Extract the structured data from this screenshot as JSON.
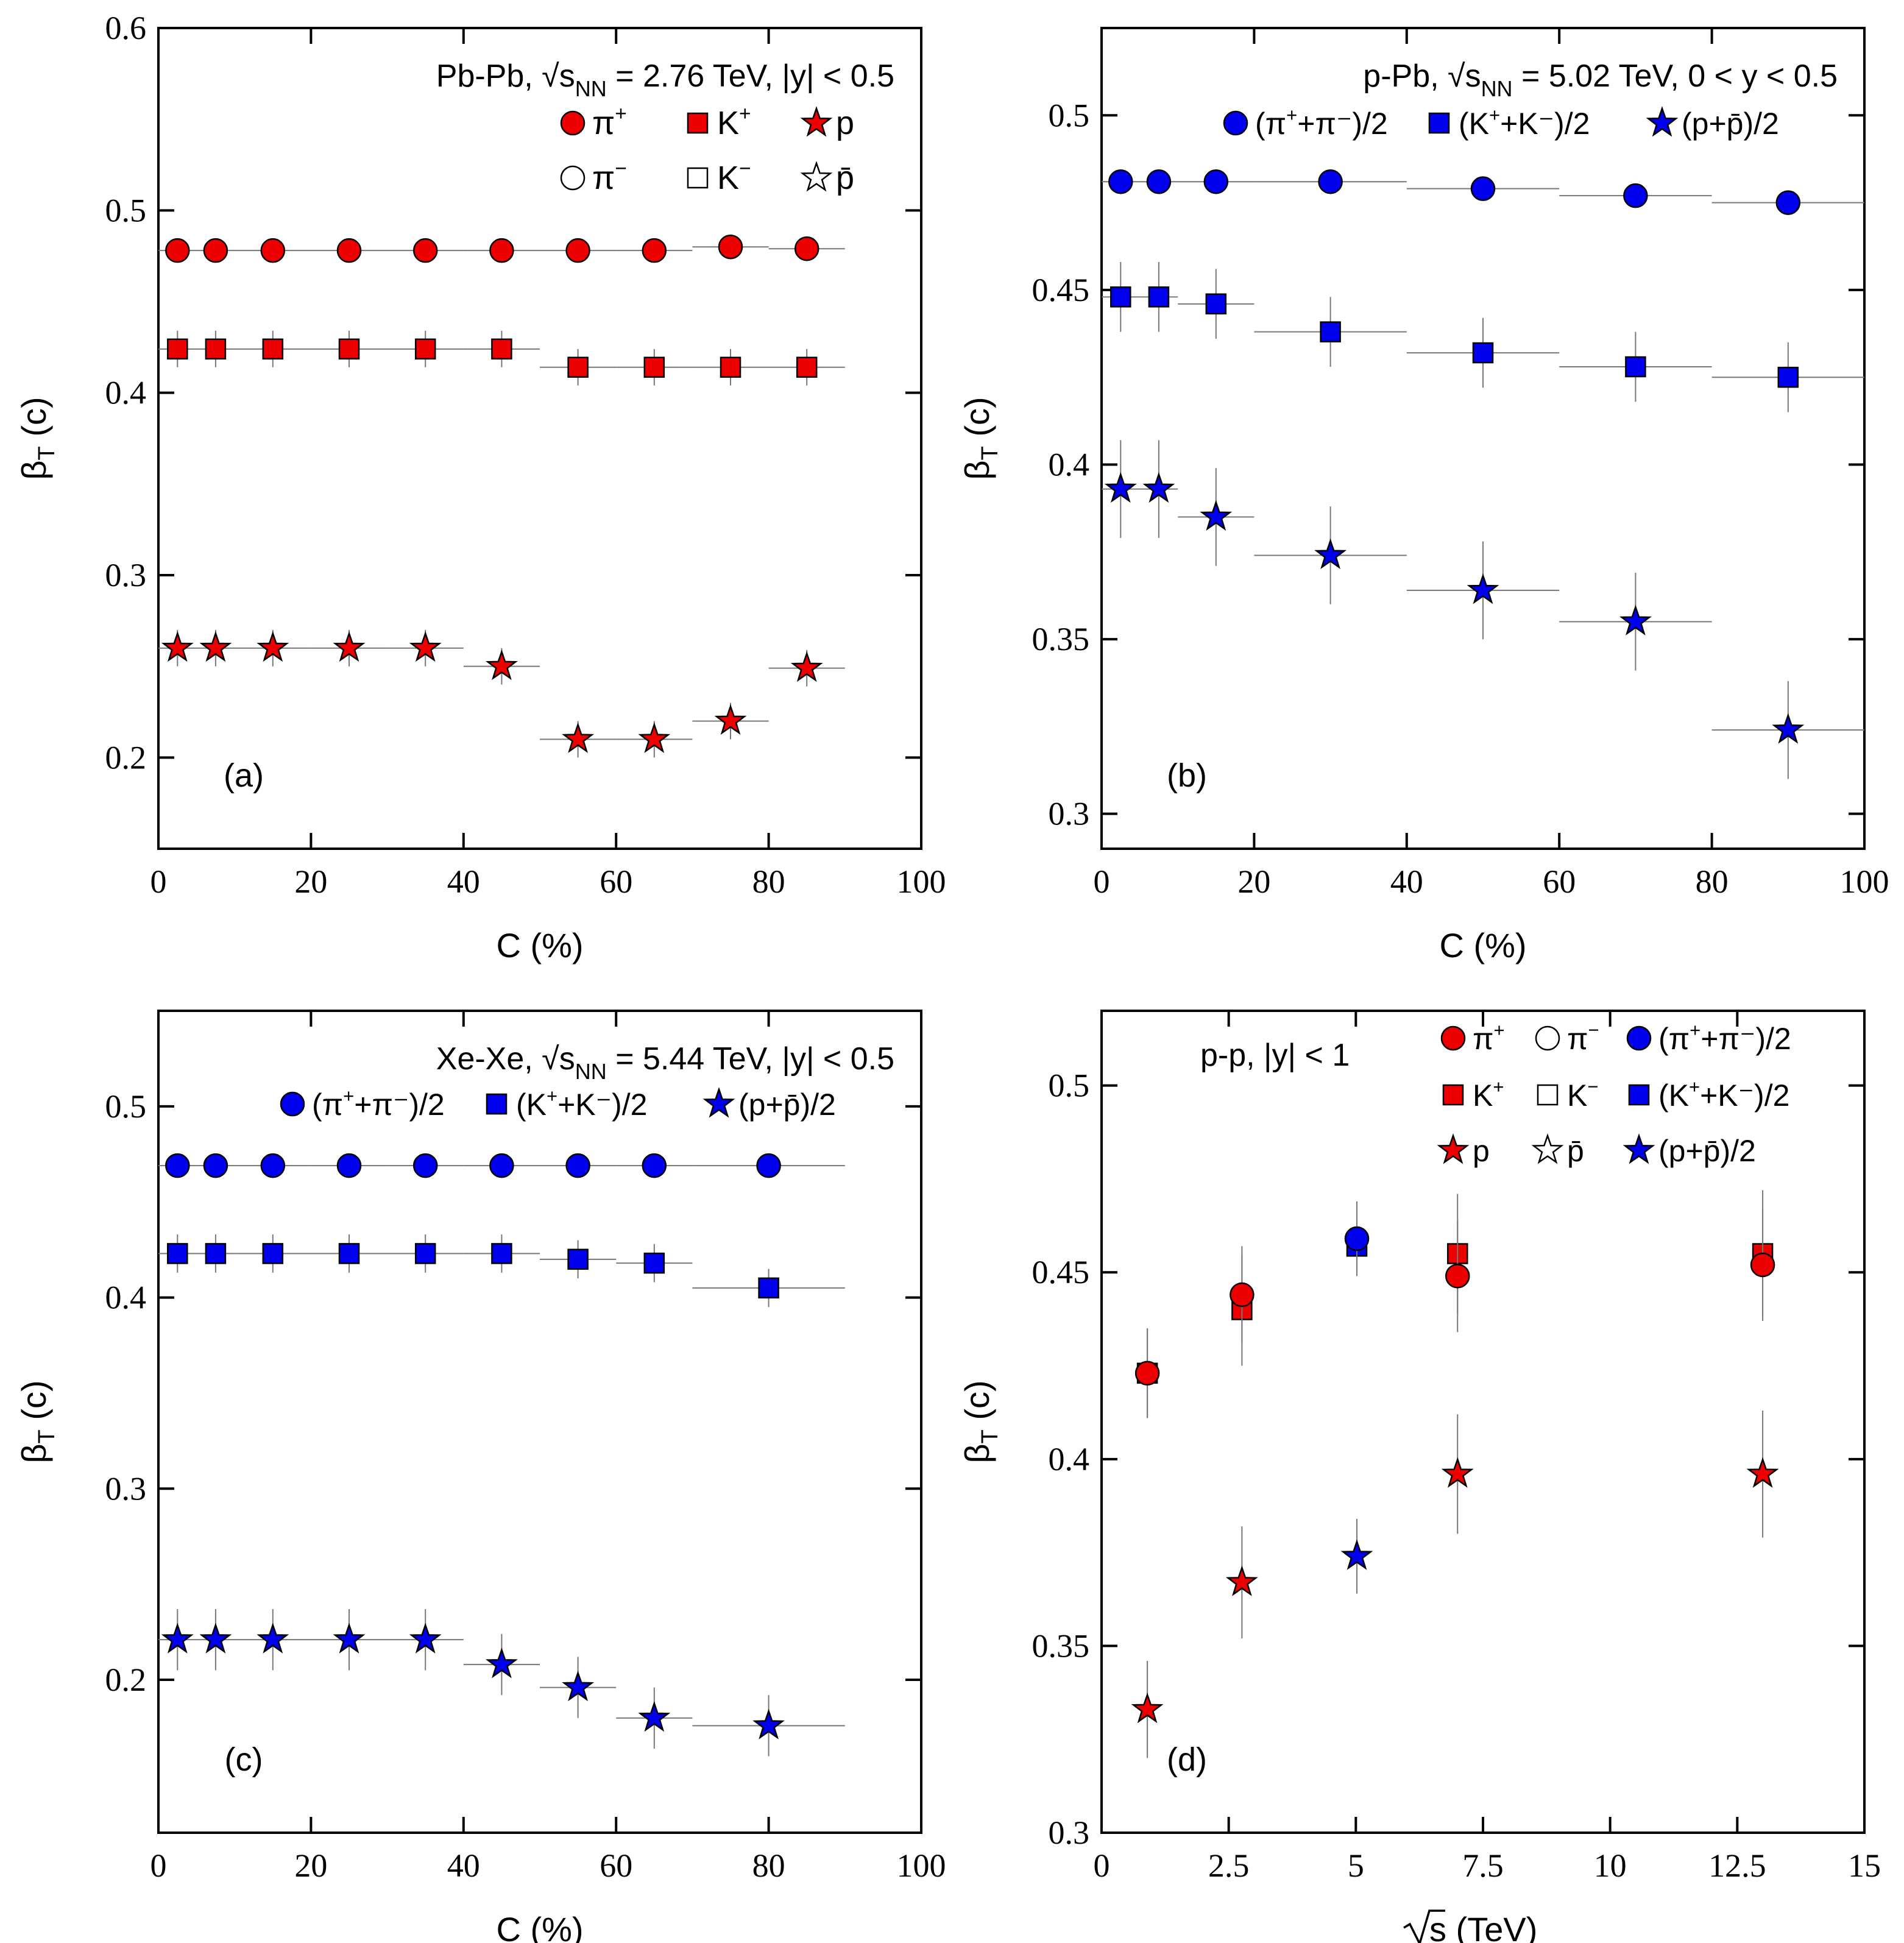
{
  "colors": {
    "red": "#ee0000",
    "blue": "#0000ee",
    "error": "#777777"
  },
  "chart_data": [
    {
      "type": "scatter",
      "panel_label": "(a)",
      "system": "Pb-Pb,",
      "sqrt_label": "s",
      "sqrt_sub": "NN",
      "annotation_rest": "= 2.76 TeV, |y| < 0.5",
      "xlabel": "C (%)",
      "ylabel_main": "β",
      "ylabel_sub": "T",
      "ylabel_unit": " (c)",
      "xlim": [
        0,
        100
      ],
      "ylim": [
        0.15,
        0.6
      ],
      "xticks": [
        0,
        20,
        40,
        60,
        80,
        100
      ],
      "xtick_labels": [
        "0",
        "20",
        "40",
        "60",
        "80",
        "100"
      ],
      "yticks": [
        0.2,
        0.3,
        0.4,
        0.5,
        0.6
      ],
      "ytick_labels": [
        "0.2",
        "0.3",
        "0.4",
        "0.5",
        "0.6"
      ],
      "legend_position": "top-right",
      "legend": [
        {
          "marker": "circle",
          "filled": true,
          "color": "red",
          "text": "π",
          "sup": "+",
          "tail": ""
        },
        {
          "marker": "square",
          "filled": true,
          "color": "red",
          "text": "K",
          "sup": "+",
          "tail": ""
        },
        {
          "marker": "star",
          "filled": true,
          "color": "red",
          "text": "p",
          "sup": "",
          "tail": ""
        },
        {
          "marker": "circle",
          "filled": false,
          "color": "black",
          "text": "π",
          "sup": "−",
          "tail": ""
        },
        {
          "marker": "square",
          "filled": false,
          "color": "black",
          "text": "K",
          "sup": "−",
          "tail": ""
        },
        {
          "marker": "star",
          "filled": false,
          "color": "black",
          "text": "p̄",
          "sup": "",
          "tail": ""
        }
      ],
      "series": [
        {
          "name": "π+",
          "marker": "circle",
          "color": "red",
          "x": [
            2.5,
            7.5,
            15,
            25,
            35,
            45,
            55,
            65,
            75,
            85
          ],
          "xerr": [
            2.5,
            2.5,
            5,
            5,
            5,
            5,
            5,
            5,
            5,
            5
          ],
          "y": [
            0.478,
            0.478,
            0.478,
            0.478,
            0.478,
            0.478,
            0.478,
            0.478,
            0.48,
            0.479
          ],
          "yerr": [
            0.004,
            0.004,
            0.004,
            0.004,
            0.004,
            0.004,
            0.004,
            0.004,
            0.004,
            0.004
          ]
        },
        {
          "name": "K+",
          "marker": "square",
          "color": "red",
          "x": [
            2.5,
            7.5,
            15,
            25,
            35,
            45,
            55,
            65,
            75,
            85
          ],
          "xerr": [
            2.5,
            2.5,
            5,
            5,
            5,
            5,
            5,
            5,
            5,
            5
          ],
          "y": [
            0.424,
            0.424,
            0.424,
            0.424,
            0.424,
            0.424,
            0.414,
            0.414,
            0.414,
            0.414
          ],
          "yerr": [
            0.01,
            0.01,
            0.01,
            0.01,
            0.01,
            0.01,
            0.01,
            0.01,
            0.01,
            0.01
          ]
        },
        {
          "name": "p",
          "marker": "star",
          "color": "red",
          "x": [
            2.5,
            7.5,
            15,
            25,
            35,
            45,
            55,
            65,
            75,
            85
          ],
          "xerr": [
            2.5,
            2.5,
            5,
            5,
            5,
            5,
            5,
            5,
            5,
            5
          ],
          "y": [
            0.26,
            0.26,
            0.26,
            0.26,
            0.26,
            0.25,
            0.21,
            0.21,
            0.22,
            0.249
          ],
          "yerr": [
            0.01,
            0.01,
            0.01,
            0.01,
            0.01,
            0.01,
            0.01,
            0.01,
            0.01,
            0.01
          ]
        }
      ]
    },
    {
      "type": "scatter",
      "panel_label": "(b)",
      "system": "p-Pb,",
      "sqrt_label": "s",
      "sqrt_sub": "NN",
      "annotation_rest": "= 5.02 TeV, 0 < y < 0.5",
      "xlabel": "C (%)",
      "ylabel_main": "β",
      "ylabel_sub": "T",
      "ylabel_unit": " (c)",
      "xlim": [
        0,
        100
      ],
      "ylim": [
        0.29,
        0.525
      ],
      "xticks": [
        0,
        20,
        40,
        60,
        80,
        100
      ],
      "xtick_labels": [
        "0",
        "20",
        "40",
        "60",
        "80",
        "100"
      ],
      "yticks": [
        0.3,
        0.35,
        0.4,
        0.45,
        0.5
      ],
      "ytick_labels": [
        "0.3",
        "0.35",
        "0.4",
        "0.45",
        "0.5"
      ],
      "legend_position": "top-right",
      "legend": [
        {
          "marker": "circle",
          "filled": true,
          "color": "blue",
          "text": "(π",
          "sup": "+",
          "tail": "+π⁻)/2"
        },
        {
          "marker": "square",
          "filled": true,
          "color": "blue",
          "text": "(K",
          "sup": "+",
          "tail": "+K⁻)/2"
        },
        {
          "marker": "star",
          "filled": true,
          "color": "blue",
          "text": "(p+p̄)/2",
          "sup": "",
          "tail": ""
        }
      ],
      "series": [
        {
          "name": "(π+ + π−)/2",
          "marker": "circle",
          "color": "blue",
          "x": [
            2.5,
            7.5,
            15,
            30,
            50,
            70,
            90
          ],
          "xerr": [
            2.5,
            2.5,
            5,
            10,
            10,
            10,
            10
          ],
          "y": [
            0.481,
            0.481,
            0.481,
            0.481,
            0.479,
            0.477,
            0.475
          ],
          "yerr": [
            0.002,
            0.002,
            0.002,
            0.002,
            0.002,
            0.002,
            0.002
          ]
        },
        {
          "name": "(K+ + K−)/2",
          "marker": "square",
          "color": "blue",
          "x": [
            2.5,
            7.5,
            15,
            30,
            50,
            70,
            90
          ],
          "xerr": [
            2.5,
            2.5,
            5,
            10,
            10,
            10,
            10
          ],
          "y": [
            0.448,
            0.448,
            0.446,
            0.438,
            0.432,
            0.428,
            0.425
          ],
          "yerr": [
            0.01,
            0.01,
            0.01,
            0.01,
            0.01,
            0.01,
            0.01
          ]
        },
        {
          "name": "(p + p̄)/2",
          "marker": "star",
          "color": "blue",
          "x": [
            2.5,
            7.5,
            15,
            30,
            50,
            70,
            90
          ],
          "xerr": [
            2.5,
            2.5,
            5,
            10,
            10,
            10,
            10
          ],
          "y": [
            0.393,
            0.393,
            0.385,
            0.374,
            0.364,
            0.355,
            0.324
          ],
          "yerr": [
            0.014,
            0.014,
            0.014,
            0.014,
            0.014,
            0.014,
            0.014
          ]
        }
      ]
    },
    {
      "type": "scatter",
      "panel_label": "(c)",
      "system": "Xe-Xe,",
      "sqrt_label": "s",
      "sqrt_sub": "NN",
      "annotation_rest": "= 5.44 TeV, |y| < 0.5",
      "xlabel": "C (%)",
      "ylabel_main": "β",
      "ylabel_sub": "T",
      "ylabel_unit": " (c)",
      "xlim": [
        0,
        100
      ],
      "ylim": [
        0.12,
        0.55
      ],
      "xticks": [
        0,
        20,
        40,
        60,
        80,
        100
      ],
      "xtick_labels": [
        "0",
        "20",
        "40",
        "60",
        "80",
        "100"
      ],
      "yticks": [
        0.2,
        0.3,
        0.4,
        0.5
      ],
      "ytick_labels": [
        "0.2",
        "0.3",
        "0.4",
        "0.5"
      ],
      "legend_position": "top-right",
      "legend": [
        {
          "marker": "circle",
          "filled": true,
          "color": "blue",
          "text": "(π",
          "sup": "+",
          "tail": "+π⁻)/2"
        },
        {
          "marker": "square",
          "filled": true,
          "color": "blue",
          "text": "(K",
          "sup": "+",
          "tail": "+K⁻)/2"
        },
        {
          "marker": "star",
          "filled": true,
          "color": "blue",
          "text": "(p+p̄)/2",
          "sup": "",
          "tail": ""
        }
      ],
      "series": [
        {
          "name": "(π+ + π−)/2",
          "marker": "circle",
          "color": "blue",
          "x": [
            2.5,
            7.5,
            15,
            25,
            35,
            45,
            55,
            65,
            80
          ],
          "xerr": [
            2.5,
            2.5,
            5,
            5,
            5,
            5,
            5,
            5,
            10
          ],
          "y": [
            0.469,
            0.469,
            0.469,
            0.469,
            0.469,
            0.469,
            0.469,
            0.469,
            0.469
          ],
          "yerr": [
            0.003,
            0.003,
            0.003,
            0.003,
            0.003,
            0.003,
            0.003,
            0.003,
            0.003
          ]
        },
        {
          "name": "(K+ + K−)/2",
          "marker": "square",
          "color": "blue",
          "x": [
            2.5,
            7.5,
            15,
            25,
            35,
            45,
            55,
            65,
            80
          ],
          "xerr": [
            2.5,
            2.5,
            5,
            5,
            5,
            5,
            5,
            5,
            10
          ],
          "y": [
            0.423,
            0.423,
            0.423,
            0.423,
            0.423,
            0.423,
            0.42,
            0.418,
            0.405
          ],
          "yerr": [
            0.01,
            0.01,
            0.01,
            0.01,
            0.01,
            0.01,
            0.01,
            0.01,
            0.01
          ]
        },
        {
          "name": "(p + p̄)/2",
          "marker": "star",
          "color": "blue",
          "x": [
            2.5,
            7.5,
            15,
            25,
            35,
            45,
            55,
            65,
            80
          ],
          "xerr": [
            2.5,
            2.5,
            5,
            5,
            5,
            5,
            5,
            5,
            10
          ],
          "y": [
            0.221,
            0.221,
            0.221,
            0.221,
            0.221,
            0.208,
            0.196,
            0.18,
            0.176
          ],
          "yerr": [
            0.016,
            0.016,
            0.016,
            0.016,
            0.016,
            0.016,
            0.016,
            0.016,
            0.016
          ]
        }
      ]
    },
    {
      "type": "scatter",
      "panel_label": "(d)",
      "system": "p-p, |y| < 1",
      "sqrt_label": "",
      "sqrt_sub": "",
      "annotation_rest": "",
      "xlabel": "s (TeV)",
      "xlabel_sqrt": true,
      "ylabel_main": "β",
      "ylabel_sub": "T",
      "ylabel_unit": " (c)",
      "xlim": [
        0,
        15
      ],
      "ylim": [
        0.3,
        0.52
      ],
      "xticks": [
        0,
        2.5,
        5,
        7.5,
        10,
        12.5,
        15
      ],
      "xtick_labels": [
        "0",
        "2.5",
        "5",
        "7.5",
        "10",
        "12.5",
        "15"
      ],
      "yticks": [
        0.3,
        0.35,
        0.4,
        0.45,
        0.5
      ],
      "ytick_labels": [
        "0.3",
        "0.35",
        "0.4",
        "0.45",
        "0.5"
      ],
      "legend_position": "top-right",
      "legend": [
        {
          "marker": "circle",
          "filled": true,
          "color": "red",
          "text": "π",
          "sup": "+",
          "tail": ""
        },
        {
          "marker": "circle",
          "filled": false,
          "color": "black",
          "text": "π",
          "sup": "−",
          "tail": ""
        },
        {
          "marker": "circle",
          "filled": true,
          "color": "blue",
          "text": "(π",
          "sup": "+",
          "tail": "+π⁻)/2"
        },
        {
          "marker": "square",
          "filled": true,
          "color": "red",
          "text": "K",
          "sup": "+",
          "tail": ""
        },
        {
          "marker": "square",
          "filled": false,
          "color": "black",
          "text": "K",
          "sup": "−",
          "tail": ""
        },
        {
          "marker": "square",
          "filled": true,
          "color": "blue",
          "text": "(K",
          "sup": "+",
          "tail": "+K⁻)/2"
        },
        {
          "marker": "star",
          "filled": true,
          "color": "red",
          "text": "p",
          "sup": "",
          "tail": ""
        },
        {
          "marker": "star",
          "filled": false,
          "color": "black",
          "text": "p̄",
          "sup": "",
          "tail": ""
        },
        {
          "marker": "star",
          "filled": true,
          "color": "blue",
          "text": "(p+p̄)/2",
          "sup": "",
          "tail": ""
        }
      ],
      "series": [
        {
          "name": "K+",
          "marker": "square",
          "color": "red",
          "x": [
            0.9,
            2.76,
            7,
            13
          ],
          "xerr": [
            0,
            0,
            0,
            0
          ],
          "y": [
            0.423,
            0.44,
            0.455,
            0.455
          ],
          "yerr": [
            0.012,
            0.015,
            0.016,
            0.017
          ]
        },
        {
          "name": "π+",
          "marker": "circle",
          "color": "red",
          "x": [
            0.9,
            2.76,
            7,
            13
          ],
          "xerr": [
            0,
            0,
            0,
            0
          ],
          "y": [
            0.423,
            0.444,
            0.449,
            0.452
          ],
          "yerr": [
            0.012,
            0.013,
            0.015,
            0.015
          ]
        },
        {
          "name": "p",
          "marker": "star",
          "color": "red",
          "x": [
            0.9,
            2.76,
            7,
            13
          ],
          "xerr": [
            0,
            0,
            0,
            0
          ],
          "y": [
            0.333,
            0.367,
            0.396,
            0.396
          ],
          "yerr": [
            0.013,
            0.015,
            0.016,
            0.017
          ]
        },
        {
          "name": "(K+ + K−)/2",
          "marker": "square",
          "color": "blue",
          "x": [
            5.02
          ],
          "xerr": [
            0
          ],
          "y": [
            0.457
          ],
          "yerr": [
            0.008
          ]
        },
        {
          "name": "(π+ + π−)/2",
          "marker": "circle",
          "color": "blue",
          "x": [
            5.02
          ],
          "xerr": [
            0
          ],
          "y": [
            0.459
          ],
          "yerr": [
            0.01
          ]
        },
        {
          "name": "(p + p̄)/2",
          "marker": "star",
          "color": "blue",
          "x": [
            5.02
          ],
          "xerr": [
            0
          ],
          "y": [
            0.374
          ],
          "yerr": [
            0.01
          ]
        }
      ]
    }
  ]
}
